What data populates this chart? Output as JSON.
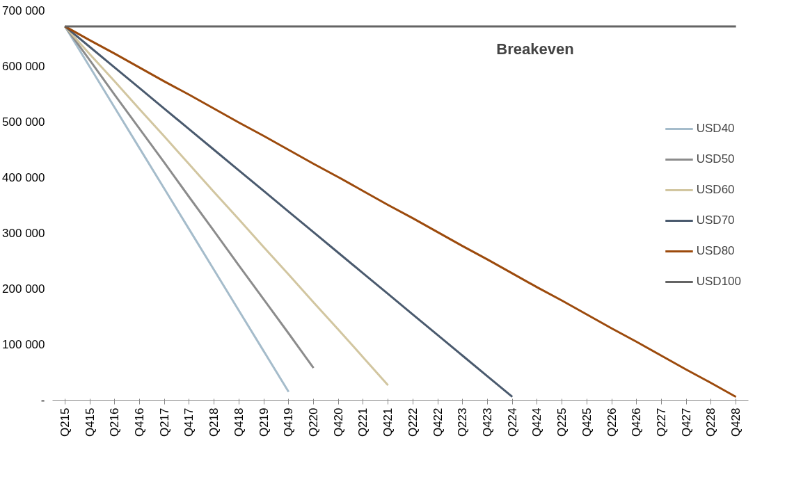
{
  "chart_data": {
    "type": "line",
    "categories": [
      "Q215",
      "Q415",
      "Q216",
      "Q416",
      "Q217",
      "Q417",
      "Q218",
      "Q418",
      "Q219",
      "Q419",
      "Q220",
      "Q420",
      "Q221",
      "Q421",
      "Q222",
      "Q422",
      "Q223",
      "Q423",
      "Q224",
      "Q424",
      "Q225",
      "Q425",
      "Q226",
      "Q426",
      "Q227",
      "Q427",
      "Q228",
      "Q428"
    ],
    "ylim": [
      0,
      700000
    ],
    "yticks": [
      {
        "value": 0,
        "label": "-"
      },
      {
        "value": 100000,
        "label": "100 000"
      },
      {
        "value": 200000,
        "label": "200 000"
      },
      {
        "value": 300000,
        "label": "300 000"
      },
      {
        "value": 400000,
        "label": "400 000"
      },
      {
        "value": 500000,
        "label": "500 000"
      },
      {
        "value": 600000,
        "label": "600 000"
      },
      {
        "value": 700000,
        "label": "700 000"
      }
    ],
    "series": [
      {
        "name": "USD40",
        "color": "#a5bccb",
        "values": [
          672000,
          599000,
          526000,
          453000,
          380000,
          307000,
          234000,
          161000,
          88000,
          15000,
          null,
          null,
          null,
          null,
          null,
          null,
          null,
          null,
          null,
          null,
          null,
          null,
          null,
          null,
          null,
          null,
          null,
          null
        ]
      },
      {
        "name": "USD50",
        "color": "#8c8c8c",
        "values": [
          672000,
          611000,
          549000,
          488000,
          427000,
          365000,
          304000,
          242000,
          181000,
          120000,
          58000,
          null,
          null,
          null,
          null,
          null,
          null,
          null,
          null,
          null,
          null,
          null,
          null,
          null,
          null,
          null,
          null,
          null
        ]
      },
      {
        "name": "USD60",
        "color": "#d2c6a0",
        "values": [
          672000,
          622000,
          573000,
          523000,
          474000,
          424000,
          374000,
          325000,
          275000,
          226000,
          176000,
          127000,
          77000,
          27000,
          null,
          null,
          null,
          null,
          null,
          null,
          null,
          null,
          null,
          null,
          null,
          null,
          null,
          null
        ]
      },
      {
        "name": "USD70",
        "color": "#4a5a6e",
        "values": [
          672000,
          635000,
          598000,
          561000,
          524000,
          487000,
          450000,
          413000,
          376000,
          339000,
          302000,
          265000,
          228000,
          191000,
          154000,
          117000,
          80000,
          43000,
          6000,
          null,
          null,
          null,
          null,
          null,
          null,
          null,
          null,
          null
        ]
      },
      {
        "name": "USD80",
        "color": "#9c4a0c",
        "values": [
          672000,
          647000,
          623000,
          598000,
          573000,
          549000,
          524000,
          499000,
          475000,
          450000,
          425000,
          401000,
          376000,
          351000,
          327000,
          302000,
          277000,
          253000,
          228000,
          203000,
          179000,
          154000,
          129000,
          105000,
          80000,
          55000,
          31000,
          6000
        ]
      },
      {
        "name": "USD100",
        "color": "#646464",
        "values": [
          672000,
          672000,
          672000,
          672000,
          672000,
          672000,
          672000,
          672000,
          672000,
          672000,
          672000,
          672000,
          672000,
          672000,
          672000,
          672000,
          672000,
          672000,
          672000,
          672000,
          672000,
          672000,
          672000,
          672000,
          672000,
          672000,
          672000,
          672000
        ]
      }
    ],
    "annotations": [
      "Breakeven"
    ],
    "legend": "right",
    "grid": false,
    "marker": "none",
    "line_style": "solid"
  }
}
